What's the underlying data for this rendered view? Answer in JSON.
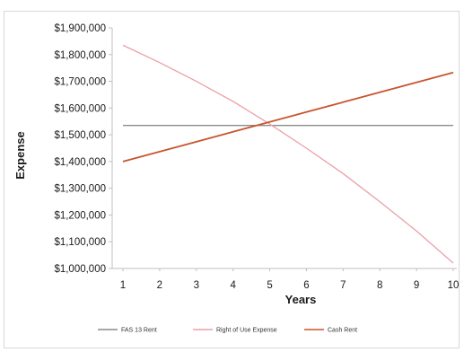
{
  "chart_data": {
    "type": "line",
    "title": "",
    "xlabel": "Years",
    "ylabel": "Expense",
    "x": [
      1,
      2,
      3,
      4,
      5,
      6,
      7,
      8,
      9,
      10
    ],
    "x_tick_labels": [
      "1",
      "2",
      "3",
      "4",
      "5",
      "6",
      "7",
      "8",
      "9",
      "10"
    ],
    "ylim": [
      1000000,
      1900000
    ],
    "y_ticks": [
      1000000,
      1100000,
      1200000,
      1300000,
      1400000,
      1500000,
      1600000,
      1700000,
      1800000,
      1900000
    ],
    "y_tick_labels": [
      "$1,000,000",
      "$1,100,000",
      "$1,200,000",
      "$1,300,000",
      "$1,400,000",
      "$1,500,000",
      "$1,600,000",
      "$1,700,000",
      "$1,800,000",
      "$1,900,000"
    ],
    "grid": false,
    "legend_position": "bottom",
    "series": [
      {
        "name": "FAS 13 Rent",
        "color": "#8c8c8c",
        "values": [
          1535000,
          1535000,
          1535000,
          1535000,
          1535000,
          1535000,
          1535000,
          1535000,
          1535000,
          1535000
        ]
      },
      {
        "name": "Right of Use Expense",
        "color": "#eaa0a8",
        "values": [
          1835000,
          1770000,
          1700000,
          1625000,
          1540000,
          1450000,
          1355000,
          1250000,
          1140000,
          1020000
        ]
      },
      {
        "name": "Cash Rent",
        "color": "#c8552e",
        "values": [
          1400000,
          1437000,
          1474000,
          1511000,
          1548000,
          1585000,
          1622000,
          1659000,
          1696000,
          1733000
        ]
      }
    ]
  }
}
